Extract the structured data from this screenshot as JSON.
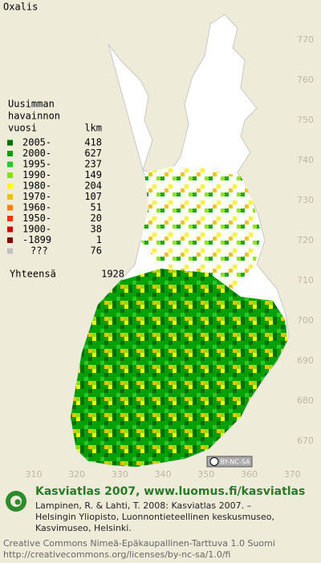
{
  "title": "Oxalis",
  "legend": {
    "heading": [
      "Uusimman",
      "havainnon"
    ],
    "col_year": "vuosi",
    "col_count": "lkm",
    "rows": [
      {
        "label": "2005-",
        "count": 418,
        "color": "#006f00"
      },
      {
        "label": "2000-",
        "count": 627,
        "color": "#00a000"
      },
      {
        "label": "1995-",
        "count": 237,
        "color": "#28c828"
      },
      {
        "label": "1990-",
        "count": 149,
        "color": "#88e000"
      },
      {
        "label": "1980-",
        "count": 204,
        "color": "#ffff00"
      },
      {
        "label": "1970-",
        "count": 107,
        "color": "#f0c000"
      },
      {
        "label": "1960-",
        "count": 51,
        "color": "#ff8000"
      },
      {
        "label": "1950-",
        "count": 20,
        "color": "#ff3000"
      },
      {
        "label": "1900-",
        "count": 38,
        "color": "#d00000"
      },
      {
        "label": "-1899",
        "count": 1,
        "color": "#800000"
      },
      {
        "label": "???",
        "count": 76,
        "color": "#c0c0c0"
      }
    ],
    "total_label": "Yhteensä",
    "total": 1928
  },
  "grid": {
    "xticks": [
      310,
      320,
      330,
      340,
      350,
      360,
      370
    ],
    "yticks": [
      770,
      760,
      750,
      740,
      730,
      720,
      710,
      700,
      690,
      680,
      670
    ]
  },
  "badge": "BY-NC-SA",
  "footer": {
    "headline": "Kasviatlas 2007, www.luomus.fi/kasviatlas",
    "citation": [
      "Lampinen, R. & Lahti, T. 2008: Kasviatlas 2007. –",
      "Helsingin Yliopisto, Luonnontieteellinen keskusmuseo,",
      "Kasvimuseo, Helsinki."
    ],
    "license": [
      "Creative Commons Nimeä-Epäkaupallinen-Tarttuva 1.0 Suomi",
      "http://creativecommons.org/licenses/by-nc-sa/1.0/fi"
    ]
  }
}
